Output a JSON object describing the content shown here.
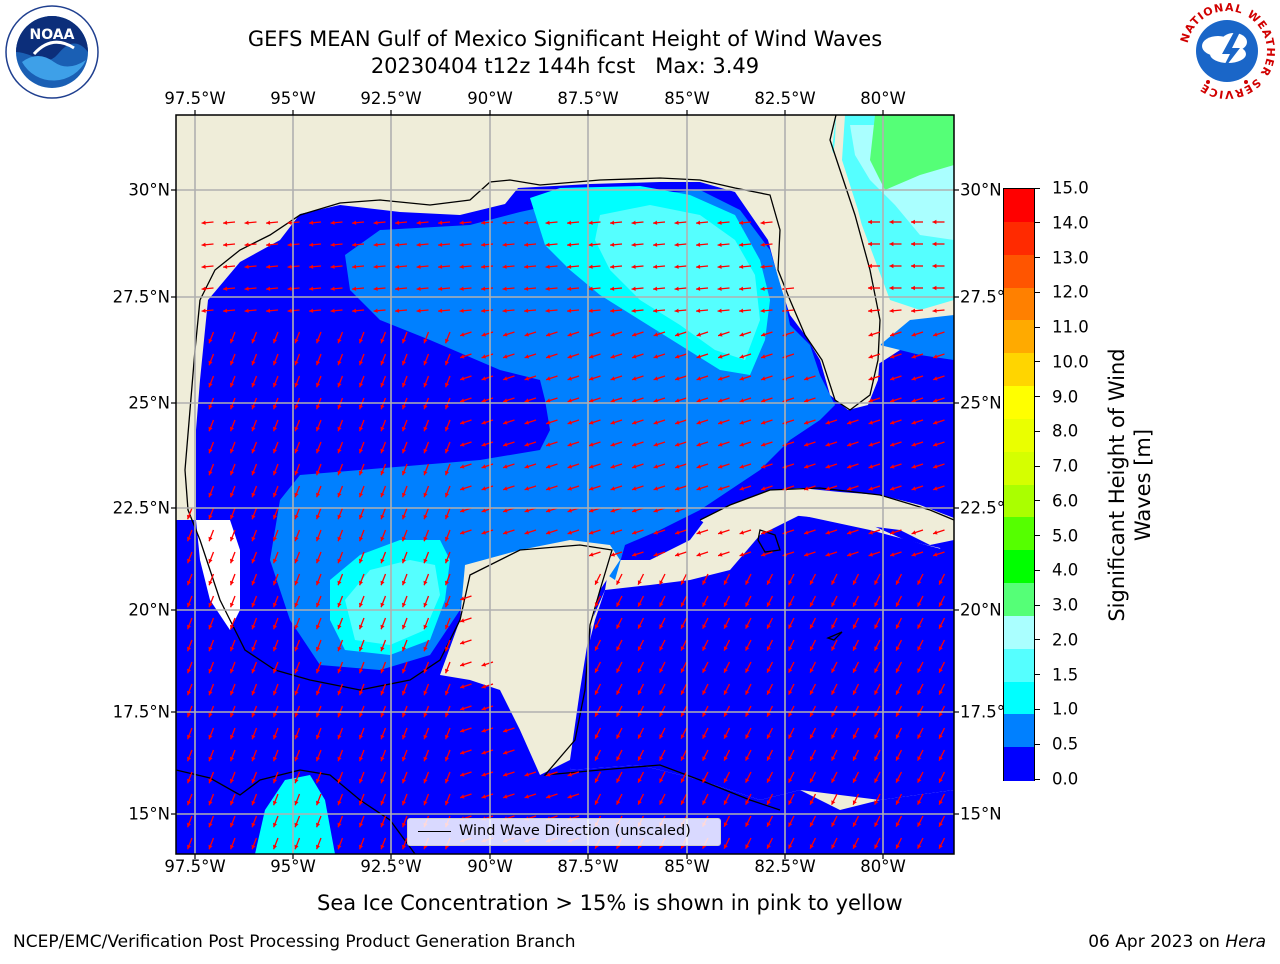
{
  "header": {
    "title_line1": "GEFS MEAN Gulf of Mexico Significant Height of Wind Waves",
    "title_line2": "20230404 t12z 144h fcst   Max: 3.49"
  },
  "map": {
    "lon_labels": [
      "97.5°W",
      "95°W",
      "92.5°W",
      "90°W",
      "87.5°W",
      "85°W",
      "82.5°W",
      "80°W"
    ],
    "lat_labels_left": [
      "30°N",
      "27.5°N",
      "25°N",
      "22.5°N",
      "20°N",
      "17.5°N",
      "15°N"
    ],
    "lat_labels_right": [
      "30°N",
      "27.5°",
      "25°N",
      "22.5°",
      "20°N",
      "17.5°",
      "15°N"
    ],
    "legend_text": "Wind Wave Direction (unscaled)",
    "colors": {
      "land": "#efedd9",
      "ocean_low": "#0000ff",
      "ocean_0_5": "#0080ff",
      "ocean_1_0": "#00ffff",
      "ocean_1_5": "#55ffff",
      "ocean_2_0": "#aaffff",
      "ocean_3_0": "#55ff77",
      "arrow": "#ff0000"
    }
  },
  "colorbar": {
    "label": "Significant Height of Wind Waves [m]",
    "ticks": [
      "15.0",
      "14.0",
      "13.0",
      "12.0",
      "11.0",
      "10.0",
      "9.0",
      "8.0",
      "7.0",
      "6.0",
      "5.0",
      "4.0",
      "3.0",
      "2.0",
      "1.5",
      "1.0",
      "0.5",
      "0.0"
    ],
    "colors_top_to_bottom": [
      "#ff0000",
      "#ff2a00",
      "#ff5500",
      "#ff8000",
      "#ffaa00",
      "#ffd500",
      "#ffff00",
      "#eaff00",
      "#d5ff00",
      "#aaff00",
      "#55ff00",
      "#00ff00",
      "#55ff77",
      "#aaffff",
      "#55ffff",
      "#00ffff",
      "#0080ff",
      "#0000ff"
    ]
  },
  "note": "Sea Ice Concentration > 15% is shown in pink to yellow",
  "footer": {
    "left": "NCEP/EMC/Verification Post Processing Product Generation Branch",
    "date": "06 Apr 2023 on ",
    "machine": "Hera"
  },
  "logos": {
    "left": "noaa-logo",
    "right": "nws-logo",
    "nws_ring_text": "NATIONAL WEATHER SERVICE"
  }
}
